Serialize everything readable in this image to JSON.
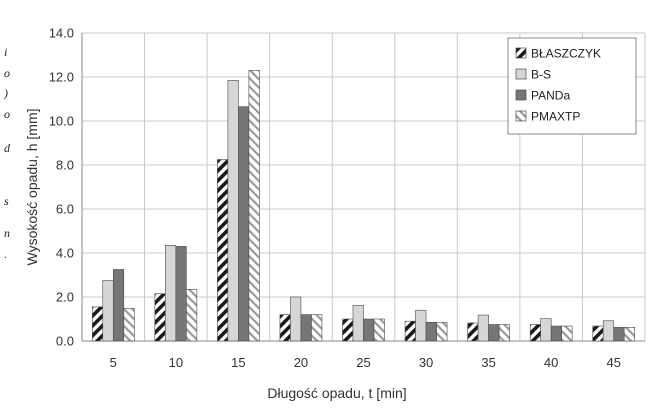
{
  "chart_data": {
    "type": "bar",
    "xlabel": "Długość opadu, t [min]",
    "ylabel": "Wysokość opadu, h [mm]",
    "ylim": [
      0,
      14
    ],
    "yticks": [
      "0.0",
      "2.0",
      "4.0",
      "6.0",
      "8.0",
      "10.0",
      "12.0",
      "14.0"
    ],
    "categories": [
      "5",
      "10",
      "15",
      "20",
      "25",
      "30",
      "35",
      "40",
      "45"
    ],
    "grid": true,
    "legend_position": "top-right",
    "series": [
      {
        "name": "BŁASZCZYK",
        "style": "diag",
        "color": "#1a1a1a",
        "values": [
          1.55,
          2.15,
          8.25,
          1.2,
          1.0,
          0.9,
          0.82,
          0.75,
          0.68
        ]
      },
      {
        "name": "B-S",
        "style": "solid",
        "color": "#d6d6d6",
        "values": [
          2.75,
          4.35,
          11.85,
          2.0,
          1.62,
          1.4,
          1.18,
          1.02,
          0.92
        ]
      },
      {
        "name": "PANDa",
        "style": "solid",
        "color": "#767676",
        "values": [
          3.25,
          4.3,
          10.65,
          1.2,
          1.0,
          0.85,
          0.75,
          0.68,
          0.62
        ]
      },
      {
        "name": "PMAXTP",
        "style": "diag-light",
        "color": "#9a9a9a",
        "values": [
          1.48,
          2.35,
          12.3,
          1.2,
          1.0,
          0.85,
          0.75,
          0.68,
          0.62
        ]
      }
    ]
  },
  "margin_text": [
    "i",
    "o",
    ")",
    "o",
    "d",
    "s",
    "n",
    "."
  ]
}
